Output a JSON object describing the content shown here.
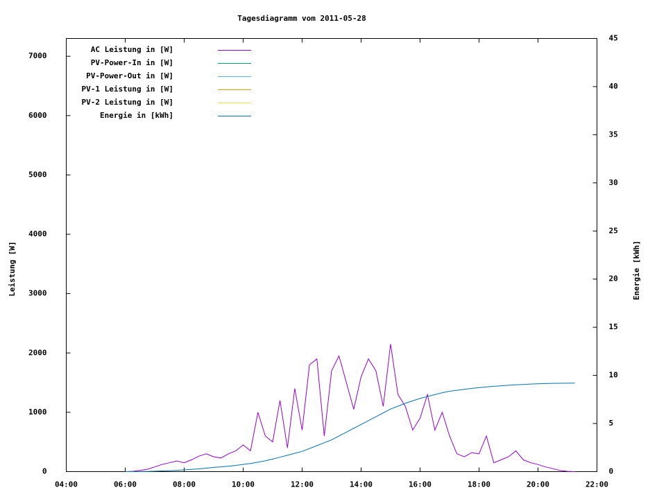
{
  "chart_data": {
    "type": "line",
    "title": "Tagesdiagramm vom 2011-05-28",
    "ylabel": "Leistung [W]",
    "y2label": "Energie [kWh]",
    "xlim": [
      4,
      22
    ],
    "xticks": [
      {
        "value": 4,
        "label": "04:00"
      },
      {
        "value": 6,
        "label": "06:00"
      },
      {
        "value": 8,
        "label": "08:00"
      },
      {
        "value": 10,
        "label": "10:00"
      },
      {
        "value": 12,
        "label": "12:00"
      },
      {
        "value": 14,
        "label": "14:00"
      },
      {
        "value": 16,
        "label": "16:00"
      },
      {
        "value": 18,
        "label": "18:00"
      },
      {
        "value": 20,
        "label": "20:00"
      },
      {
        "value": 22,
        "label": "22:00"
      }
    ],
    "ylim": [
      0,
      7300
    ],
    "yticks": [
      0,
      1000,
      2000,
      3000,
      4000,
      5000,
      6000,
      7000
    ],
    "y2lim": [
      0,
      45
    ],
    "y2ticks": [
      0,
      5,
      10,
      15,
      20,
      25,
      30,
      35,
      40,
      45
    ],
    "legend": "top-left",
    "x": [
      6,
      6.25,
      6.5,
      6.75,
      7,
      7.25,
      7.5,
      7.75,
      8,
      8.25,
      8.5,
      8.75,
      9,
      9.25,
      9.5,
      9.75,
      10,
      10.25,
      10.5,
      10.75,
      11,
      11.25,
      11.5,
      11.75,
      12,
      12.25,
      12.5,
      12.75,
      13,
      13.25,
      13.5,
      13.75,
      14,
      14.25,
      14.5,
      14.75,
      15,
      15.25,
      15.5,
      15.75,
      16,
      16.25,
      16.5,
      16.75,
      17,
      17.25,
      17.5,
      17.75,
      18,
      18.25,
      18.5,
      18.75,
      19,
      19.25,
      19.5,
      19.75,
      20,
      20.25,
      20.5,
      20.75,
      21,
      21.25
    ],
    "series": [
      {
        "name": "AC Leistung in [W]",
        "color": "#9400d3",
        "values": [
          0,
          5,
          20,
          40,
          80,
          120,
          150,
          180,
          150,
          200,
          260,
          300,
          250,
          230,
          300,
          350,
          450,
          350,
          1000,
          600,
          500,
          1200,
          400,
          1400,
          700,
          1800,
          1900,
          600,
          1700,
          1950,
          1500,
          1050,
          1600,
          1900,
          1700,
          1100,
          2150,
          1300,
          1100,
          700,
          900,
          1300,
          700,
          1000,
          600,
          300,
          250,
          320,
          300,
          600,
          150,
          200,
          250,
          350,
          200,
          150,
          120,
          80,
          50,
          20,
          5,
          0
        ]
      },
      {
        "name": "PV-Power-In in [W]",
        "color": "#009e73",
        "values": [
          null,
          null,
          null,
          null,
          null,
          null,
          null,
          null,
          null,
          null,
          null,
          null,
          null,
          null,
          null,
          null,
          null,
          null,
          null,
          null,
          null,
          null,
          null,
          null,
          null,
          null,
          null,
          null,
          null,
          null,
          null,
          null,
          null,
          null,
          null,
          null,
          null,
          null,
          null,
          null,
          null,
          null,
          null,
          null,
          null,
          null,
          null,
          null,
          null,
          null,
          null,
          null,
          null,
          null,
          null,
          null,
          null,
          null,
          null,
          null,
          null,
          null
        ]
      },
      {
        "name": "PV-Power-Out in [W]",
        "color": "#56b4e9",
        "values": [
          null,
          null,
          null,
          null,
          null,
          null,
          null,
          null,
          null,
          null,
          null,
          null,
          null,
          null,
          null,
          null,
          null,
          null,
          null,
          null,
          null,
          null,
          null,
          null,
          null,
          null,
          null,
          null,
          null,
          null,
          null,
          null,
          null,
          null,
          null,
          null,
          null,
          null,
          null,
          null,
          null,
          null,
          null,
          null,
          null,
          null,
          null,
          null,
          null,
          null,
          null,
          null,
          null,
          null,
          null,
          null,
          null,
          null,
          null,
          null,
          null,
          null
        ]
      },
      {
        "name": "PV-1 Leistung in [W]",
        "color": "#e69f00",
        "values": [
          null,
          null,
          null,
          null,
          null,
          null,
          null,
          null,
          null,
          null,
          null,
          null,
          null,
          null,
          null,
          null,
          null,
          null,
          null,
          null,
          null,
          null,
          null,
          null,
          null,
          null,
          null,
          null,
          null,
          null,
          null,
          null,
          null,
          null,
          null,
          null,
          null,
          null,
          null,
          null,
          null,
          null,
          null,
          null,
          null,
          null,
          null,
          null,
          null,
          null,
          null,
          null,
          null,
          null,
          null,
          null,
          null,
          null,
          null,
          null,
          null,
          null
        ]
      },
      {
        "name": "PV-2 Leistung in [W]",
        "color": "#f0e442",
        "values": [
          null,
          null,
          null,
          null,
          null,
          null,
          null,
          null,
          null,
          null,
          null,
          null,
          null,
          null,
          null,
          null,
          null,
          null,
          null,
          null,
          null,
          null,
          null,
          null,
          null,
          null,
          null,
          null,
          null,
          null,
          null,
          null,
          null,
          null,
          null,
          null,
          null,
          null,
          null,
          null,
          null,
          null,
          null,
          null,
          null,
          null,
          null,
          null,
          null,
          null,
          null,
          null,
          null,
          null,
          null,
          null,
          null,
          null,
          null,
          null,
          null,
          null
        ]
      },
      {
        "name": "Energie in [kWh]",
        "color": "#0072b2",
        "axis": "y2",
        "values": [
          0,
          0,
          0.01,
          0.02,
          0.04,
          0.07,
          0.1,
          0.14,
          0.18,
          0.23,
          0.29,
          0.36,
          0.44,
          0.5,
          0.57,
          0.65,
          0.75,
          0.85,
          0.98,
          1.12,
          1.3,
          1.5,
          1.7,
          1.9,
          2.1,
          2.4,
          2.7,
          3.0,
          3.3,
          3.7,
          4.1,
          4.5,
          4.9,
          5.3,
          5.7,
          6.1,
          6.5,
          6.8,
          7.1,
          7.35,
          7.6,
          7.8,
          8.0,
          8.2,
          8.35,
          8.45,
          8.55,
          8.65,
          8.72,
          8.8,
          8.86,
          8.92,
          8.97,
          9.02,
          9.06,
          9.1,
          9.13,
          9.15,
          9.17,
          9.18,
          9.19,
          9.2
        ]
      }
    ]
  }
}
